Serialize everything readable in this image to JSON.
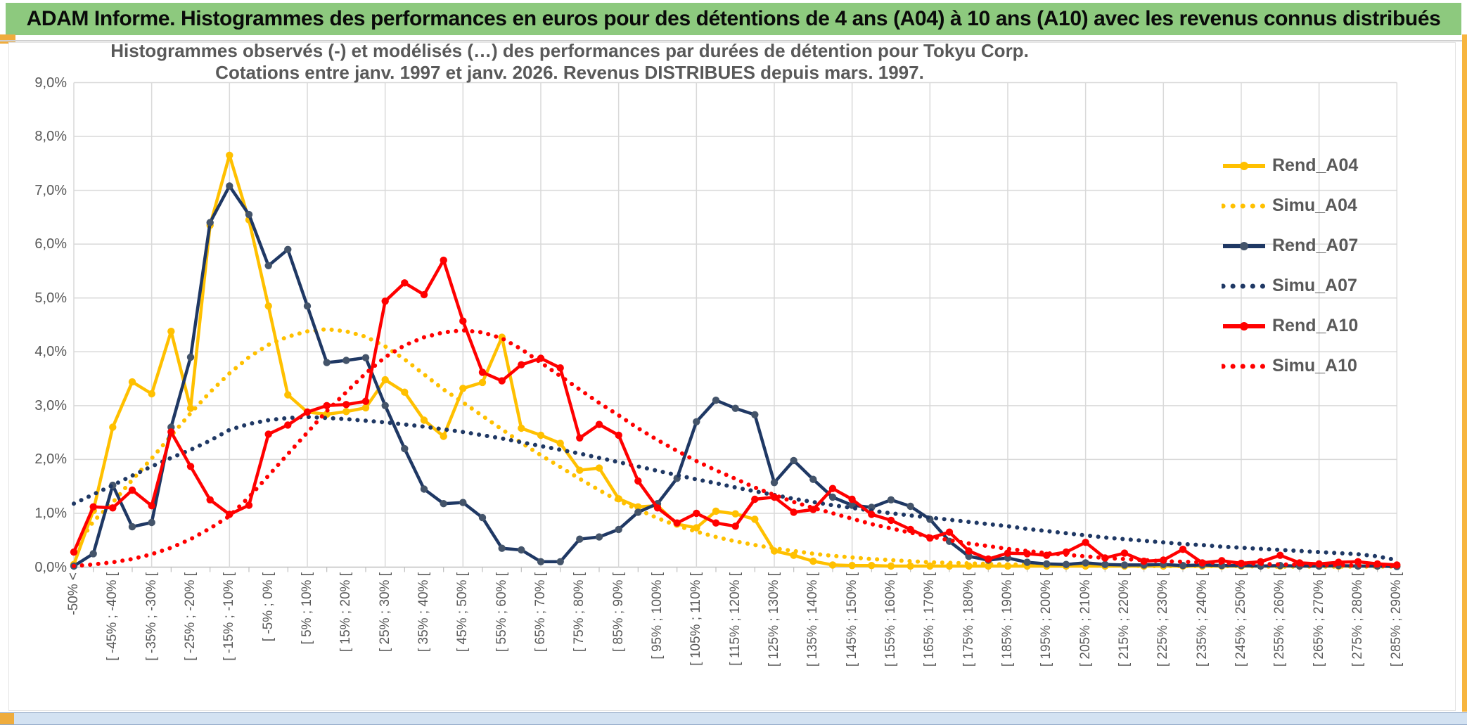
{
  "banner": {
    "title": "ADAM Informe. Histogrammes des performances en euros pour des détentions de 4 ans (A04) à 10 ans (A10) avec les revenus connus distribués"
  },
  "chrome": {
    "accent_green": "#8DC97E",
    "accent_gold": "#EFAC3D",
    "bottom_bar_color": "#D3E2F2"
  },
  "chart_data": {
    "type": "line",
    "title_line1": "Histogrammes observés (-) et modélisés (…) des performances par durées de détention pour Tokyu Corp.",
    "title_line2": "Cotations entre janv. 1997 et janv. 2026. Revenus DISTRIBUES depuis mars. 1997.",
    "grid": true,
    "legend_position": "right",
    "ylim": [
      0,
      9
    ],
    "y_tick_labels": [
      "0,0%",
      "1,0%",
      "2,0%",
      "3,0%",
      "4,0%",
      "5,0%",
      "6,0%",
      "7,0%",
      "8,0%",
      "9,0%"
    ],
    "n_bins": 69,
    "x_tick_every": 2,
    "x_tick_labels": [
      "-50% <",
      "[ -45% ; -40% [",
      "[ -35% ; -30% [",
      "[ -25% ; -20% [",
      "[ -15% ; -10% [",
      "[ -5% ; 0% [",
      "[ 5% ; 10% [",
      "[ 15% ; 20% [",
      "[ 25% ; 30% [",
      "[ 35% ; 40% [",
      "[ 45% ; 50% [",
      "[ 55% ; 60% [",
      "[ 65% ; 70% [",
      "[ 75% ; 80% [",
      "[ 85% ; 90% [",
      "[ 95% ; 100% [",
      "[ 105% ; 110% [",
      "[ 115% ; 120% [",
      "[ 125% ; 130% [",
      "[ 135% ; 140% [",
      "[ 145% ; 150% [",
      "[ 155% ; 160% [",
      "[ 165% ; 170% [",
      "[ 175% ; 180% [",
      "[ 185% ; 190% [",
      "[ 195% ; 200% [",
      "[ 205% ; 210% [",
      "[ 215% ; 220% [",
      "[ 225% ; 230% [",
      "[ 235% ; 240% [",
      "[ 245% ; 250% [",
      "[ 255% ; 260% [",
      "[ 265% ; 270% [",
      "[ 275% ; 280% [",
      "[ 285% ; 290% ["
    ],
    "series": [
      {
        "name": "Rend_A04",
        "style": "solid",
        "color": "#FFC000",
        "marker_color": "#FFC000",
        "values": [
          0.05,
          1.05,
          2.6,
          3.44,
          3.22,
          4.38,
          2.95,
          6.35,
          7.65,
          6.45,
          4.85,
          3.2,
          2.88,
          2.84,
          2.89,
          2.96,
          3.48,
          3.25,
          2.73,
          2.43,
          3.32,
          3.43,
          4.27,
          2.58,
          2.45,
          2.3,
          1.8,
          1.84,
          1.27,
          1.12,
          1.14,
          0.8,
          0.73,
          1.04,
          0.99,
          0.89,
          0.3,
          0.22,
          0.11,
          0.04,
          0.03,
          0.03,
          0.02,
          0.02,
          0.02,
          0.02,
          0.02,
          0.02,
          0.02,
          0.02,
          0.02,
          0.02,
          0.02,
          0.02,
          0.02,
          0.02,
          0.02,
          0.02,
          0.02,
          0.02,
          0.02,
          0.02,
          0.02,
          0.02,
          0.02,
          0.02,
          0.02,
          0.02,
          0.02
        ]
      },
      {
        "name": "Simu_A04",
        "style": "dotted",
        "color": "#FFC000",
        "values": [
          0.3,
          0.85,
          1.2,
          1.62,
          2.02,
          2.44,
          2.86,
          3.25,
          3.6,
          3.9,
          4.13,
          4.28,
          4.38,
          4.42,
          4.38,
          4.28,
          4.1,
          3.86,
          3.58,
          3.3,
          3.06,
          2.81,
          2.56,
          2.31,
          2.08,
          1.86,
          1.64,
          1.43,
          1.23,
          1.07,
          0.91,
          0.77,
          0.66,
          0.56,
          0.48,
          0.41,
          0.35,
          0.3,
          0.25,
          0.21,
          0.18,
          0.15,
          0.13,
          0.11,
          0.09,
          0.08,
          0.07,
          0.06,
          0.05,
          0.05,
          0.04,
          0.04,
          0.03,
          0.03,
          0.03,
          0.02,
          0.02,
          0.02,
          0.02,
          0.02,
          0.02,
          0.01,
          0.01,
          0.01,
          0.01,
          0.01,
          0.01,
          0.01,
          0.01
        ]
      },
      {
        "name": "Rend_A07",
        "style": "solid",
        "color": "#1F3864",
        "marker_color": "#44546A",
        "values": [
          0.02,
          0.25,
          1.52,
          0.75,
          0.83,
          2.6,
          3.9,
          6.4,
          7.08,
          6.55,
          5.6,
          5.9,
          4.85,
          3.8,
          3.84,
          3.89,
          3.0,
          2.2,
          1.45,
          1.18,
          1.2,
          0.92,
          0.35,
          0.32,
          0.1,
          0.1,
          0.52,
          0.56,
          0.7,
          1.02,
          1.18,
          1.65,
          2.7,
          3.1,
          2.95,
          2.83,
          1.57,
          1.98,
          1.63,
          1.3,
          1.15,
          1.11,
          1.25,
          1.13,
          0.89,
          0.48,
          0.2,
          0.13,
          0.17,
          0.09,
          0.06,
          0.05,
          0.08,
          0.05,
          0.04,
          0.04,
          0.05,
          0.03,
          0.04,
          0.03,
          0.03,
          0.02,
          0.03,
          0.02,
          0.02,
          0.03,
          0.02,
          0.02,
          0.01
        ]
      },
      {
        "name": "Simu_A07",
        "style": "dotted",
        "color": "#1F3864",
        "values": [
          1.18,
          1.35,
          1.52,
          1.7,
          1.87,
          2.03,
          2.18,
          2.35,
          2.55,
          2.66,
          2.73,
          2.77,
          2.79,
          2.77,
          2.75,
          2.72,
          2.69,
          2.65,
          2.61,
          2.56,
          2.51,
          2.45,
          2.39,
          2.32,
          2.25,
          2.18,
          2.11,
          2.03,
          1.95,
          1.87,
          1.79,
          1.71,
          1.63,
          1.56,
          1.48,
          1.41,
          1.34,
          1.27,
          1.21,
          1.15,
          1.1,
          1.05,
          1.0,
          0.96,
          0.92,
          0.88,
          0.84,
          0.8,
          0.76,
          0.71,
          0.67,
          0.63,
          0.59,
          0.55,
          0.52,
          0.49,
          0.46,
          0.43,
          0.41,
          0.38,
          0.36,
          0.34,
          0.32,
          0.3,
          0.28,
          0.26,
          0.24,
          0.2,
          0.13
        ]
      },
      {
        "name": "Rend_A10",
        "style": "solid",
        "color": "#FF0000",
        "marker_color": "#FF0000",
        "values": [
          0.28,
          1.12,
          1.1,
          1.43,
          1.14,
          2.51,
          1.87,
          1.25,
          0.98,
          1.15,
          2.47,
          2.64,
          2.88,
          3.0,
          3.02,
          3.08,
          4.94,
          5.28,
          5.06,
          5.7,
          4.57,
          3.62,
          3.46,
          3.76,
          3.88,
          3.7,
          2.4,
          2.65,
          2.45,
          1.6,
          1.1,
          0.82,
          1.0,
          0.82,
          0.76,
          1.26,
          1.3,
          1.02,
          1.07,
          1.46,
          1.26,
          0.98,
          0.87,
          0.7,
          0.54,
          0.65,
          0.3,
          0.15,
          0.26,
          0.25,
          0.22,
          0.28,
          0.46,
          0.17,
          0.26,
          0.11,
          0.13,
          0.33,
          0.08,
          0.12,
          0.07,
          0.1,
          0.22,
          0.08,
          0.06,
          0.09,
          0.1,
          0.06,
          0.04
        ]
      },
      {
        "name": "Simu_A10",
        "style": "dotted",
        "color": "#FF0000",
        "values": [
          0.02,
          0.05,
          0.09,
          0.15,
          0.24,
          0.36,
          0.52,
          0.72,
          0.95,
          1.3,
          1.7,
          2.1,
          2.5,
          2.9,
          3.25,
          3.6,
          3.9,
          4.12,
          4.27,
          4.36,
          4.4,
          4.36,
          4.25,
          4.05,
          3.8,
          3.55,
          3.3,
          3.05,
          2.82,
          2.58,
          2.36,
          2.16,
          1.97,
          1.8,
          1.64,
          1.48,
          1.34,
          1.21,
          1.1,
          1.0,
          0.9,
          0.8,
          0.72,
          0.64,
          0.57,
          0.5,
          0.44,
          0.39,
          0.34,
          0.3,
          0.26,
          0.23,
          0.2,
          0.17,
          0.15,
          0.13,
          0.11,
          0.1,
          0.09,
          0.08,
          0.07,
          0.06,
          0.05,
          0.05,
          0.04,
          0.04,
          0.03,
          0.03,
          0.02
        ]
      }
    ]
  }
}
